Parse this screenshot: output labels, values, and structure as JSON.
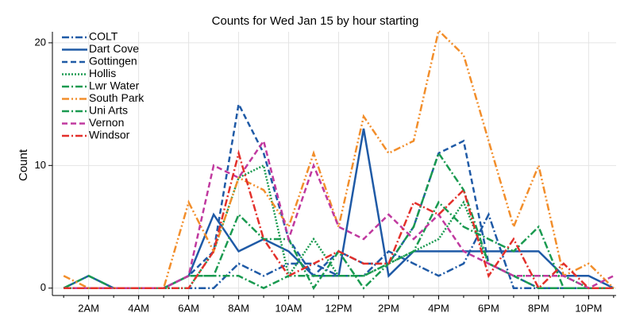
{
  "chart_data": {
    "type": "line",
    "title": "Counts for Wed Jan 15 by hour starting",
    "y_label": "Count",
    "x": [
      1,
      2,
      3,
      4,
      5,
      6,
      7,
      8,
      9,
      10,
      11,
      12,
      13,
      14,
      15,
      16,
      17,
      18,
      19,
      20,
      21,
      22,
      23
    ],
    "xlim": [
      0.55,
      23.1
    ],
    "xticks": [
      {
        "value": 2,
        "label": "2AM"
      },
      {
        "value": 4,
        "label": "4AM"
      },
      {
        "value": 6,
        "label": "6AM"
      },
      {
        "value": 8,
        "label": "8AM"
      },
      {
        "value": 10,
        "label": "10AM"
      },
      {
        "value": 12,
        "label": "12PM"
      },
      {
        "value": 14,
        "label": "2PM"
      },
      {
        "value": 16,
        "label": "4PM"
      },
      {
        "value": 18,
        "label": "6PM"
      },
      {
        "value": 20,
        "label": "8PM"
      },
      {
        "value": 22,
        "label": "10PM"
      }
    ],
    "ylim": [
      -0.6,
      20.9
    ],
    "yticks": [
      0,
      10,
      20
    ],
    "grid": true,
    "legend": "upper left",
    "series": [
      {
        "name": "COLT",
        "color": "#1f5aa6",
        "dash": "9 3 2 3",
        "values": [
          0,
          0,
          0,
          0,
          0,
          0,
          0,
          2,
          1,
          2,
          2,
          1,
          1,
          3,
          2,
          1,
          2,
          6,
          0,
          0,
          0,
          0,
          0
        ]
      },
      {
        "name": "Dart Cove",
        "color": "#1f5aa6",
        "dash": "",
        "values": [
          0,
          1,
          0,
          0,
          0,
          1,
          6,
          3,
          4,
          3,
          1,
          1,
          13,
          1,
          3,
          3,
          3,
          3,
          3,
          3,
          1,
          1,
          0
        ]
      },
      {
        "name": "Gottingen",
        "color": "#1f5aa6",
        "dash": "7 4",
        "values": [
          0,
          0,
          0,
          0,
          0,
          1,
          3,
          15,
          11,
          4,
          1,
          3,
          2,
          2,
          5,
          11,
          12,
          2,
          1,
          0,
          0,
          0,
          0
        ]
      },
      {
        "name": "Hollis",
        "color": "#1a9a50",
        "dash": "2 2",
        "values": [
          0,
          0,
          0,
          0,
          0,
          0,
          3,
          9,
          10,
          1,
          4,
          1,
          1,
          2,
          3,
          4,
          7,
          2,
          1,
          1,
          1,
          0,
          0
        ]
      },
      {
        "name": "Lwr Water",
        "color": "#1a9a50",
        "dash": "9 3 2 3",
        "values": [
          0,
          1,
          0,
          0,
          0,
          1,
          1,
          6,
          4,
          4,
          0,
          3,
          0,
          2,
          3,
          7,
          5,
          4,
          3,
          5,
          0,
          0,
          0
        ]
      },
      {
        "name": "South Park",
        "color": "#f28e2b",
        "dash": "9 3 2 3 2 3",
        "values": [
          1,
          0,
          0,
          0,
          0,
          7,
          3,
          9,
          8,
          5,
          11,
          5,
          14,
          11,
          12,
          21,
          19,
          12,
          5,
          10,
          1,
          2,
          0
        ]
      },
      {
        "name": "Uni Arts",
        "color": "#1a9a50",
        "dash": "9 3 2 3",
        "values": [
          0,
          0,
          0,
          0,
          0,
          1,
          1,
          1,
          0,
          1,
          1,
          1,
          1,
          2,
          5,
          11,
          8,
          2,
          1,
          0,
          0,
          0,
          0
        ]
      },
      {
        "name": "Vernon",
        "color": "#c0399f",
        "dash": "7 4",
        "values": [
          0,
          0,
          0,
          0,
          0,
          1,
          10,
          9,
          12,
          4,
          10,
          5,
          4,
          6,
          4,
          6,
          3,
          2,
          1,
          1,
          1,
          0,
          1
        ]
      },
      {
        "name": "Windsor",
        "color": "#e3302b",
        "dash": "9 3 2 3",
        "values": [
          0,
          0,
          0,
          0,
          0,
          0,
          3,
          11,
          4,
          1,
          2,
          3,
          2,
          2,
          7,
          6,
          8,
          1,
          4,
          0,
          2,
          0,
          0
        ]
      }
    ]
  }
}
